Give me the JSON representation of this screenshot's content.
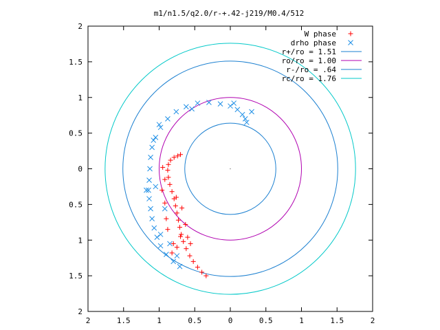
{
  "chart_data": {
    "type": "scatter",
    "title": "m1/n1.5/q2.0/r-+.42-j219/M0.4/512",
    "xlabel": "",
    "ylabel": "",
    "xlim": [
      -2,
      2
    ],
    "ylim": [
      -2,
      2
    ],
    "x_tick_values": [
      -2,
      -1.5,
      -1,
      -0.5,
      0,
      0.5,
      1,
      1.5,
      2
    ],
    "x_tick_labels": [
      "2",
      "1.5",
      "1",
      "0.5",
      "0",
      "0.5",
      "1",
      "1.5",
      "2"
    ],
    "y_tick_values": [
      2,
      1.5,
      1,
      0.5,
      0,
      -0.5,
      -1,
      -1.5,
      -2
    ],
    "y_tick_labels": [
      "2",
      "1.5",
      "1",
      "0.5",
      "0",
      "0.5",
      "1",
      "1.5",
      "2"
    ],
    "grid": false,
    "legend_position": "top-right",
    "series": [
      {
        "name": "W phase",
        "kind": "points",
        "marker": "plus",
        "color": "#ff0000",
        "points": [
          [
            -0.34,
            -1.5
          ],
          [
            -0.4,
            -1.45
          ],
          [
            -0.46,
            -1.38
          ],
          [
            -0.52,
            -1.3
          ],
          [
            -0.57,
            -1.22
          ],
          [
            -0.62,
            -1.12
          ],
          [
            -0.66,
            -1.02
          ],
          [
            -0.69,
            -0.92
          ],
          [
            -0.71,
            -0.82
          ],
          [
            -0.73,
            -0.72
          ],
          [
            -0.75,
            -0.62
          ],
          [
            -0.77,
            -0.52
          ],
          [
            -0.79,
            -0.42
          ],
          [
            -0.82,
            -0.32
          ],
          [
            -0.85,
            -0.22
          ],
          [
            -0.87,
            -0.12
          ],
          [
            -0.88,
            -0.02
          ],
          [
            -0.87,
            0.06
          ],
          [
            -0.84,
            0.12
          ],
          [
            -0.79,
            0.16
          ],
          [
            -0.74,
            0.18
          ],
          [
            -0.7,
            0.2
          ],
          [
            -0.75,
            -1.1
          ],
          [
            -0.8,
            -1.05
          ],
          [
            -0.7,
            -0.95
          ],
          [
            -0.88,
            -0.85
          ],
          [
            -0.92,
            -0.48
          ],
          [
            -0.96,
            -0.3
          ],
          [
            -0.9,
            -0.7
          ],
          [
            -0.6,
            -0.96
          ],
          [
            -0.63,
            -0.78
          ],
          [
            -0.82,
            -1.18
          ],
          [
            -0.56,
            -1.05
          ],
          [
            -0.92,
            -0.15
          ],
          [
            -0.95,
            0.02
          ],
          [
            -0.76,
            -0.4
          ],
          [
            -0.68,
            -0.55
          ]
        ]
      },
      {
        "name": "drho phase",
        "kind": "points",
        "marker": "cross",
        "color": "#1f8fe6",
        "points": [
          [
            -0.71,
            -1.37
          ],
          [
            -0.8,
            -1.3
          ],
          [
            -0.9,
            -1.2
          ],
          [
            -0.98,
            -1.08
          ],
          [
            -1.03,
            -0.96
          ],
          [
            -1.07,
            -0.83
          ],
          [
            -1.1,
            -0.7
          ],
          [
            -1.12,
            -0.56
          ],
          [
            -1.14,
            -0.42
          ],
          [
            -1.15,
            -0.3
          ],
          [
            -1.14,
            -0.16
          ],
          [
            -1.13,
            0.0
          ],
          [
            -1.12,
            0.16
          ],
          [
            -1.1,
            0.3
          ],
          [
            -1.05,
            0.44
          ],
          [
            -0.98,
            0.58
          ],
          [
            -0.88,
            0.7
          ],
          [
            -0.76,
            0.8
          ],
          [
            -0.62,
            0.87
          ],
          [
            -0.46,
            0.92
          ],
          [
            -0.3,
            0.93
          ],
          [
            -0.14,
            0.91
          ],
          [
            0.0,
            0.88
          ],
          [
            0.1,
            0.83
          ],
          [
            0.17,
            0.76
          ],
          [
            0.21,
            0.7
          ],
          [
            0.23,
            0.65
          ],
          [
            -0.92,
            -0.56
          ],
          [
            -0.98,
            -0.92
          ],
          [
            -1.18,
            -0.3
          ],
          [
            -1.05,
            -0.25
          ],
          [
            -1.08,
            0.4
          ],
          [
            -0.54,
            0.84
          ],
          [
            0.3,
            0.8
          ],
          [
            -0.85,
            -1.05
          ],
          [
            -0.75,
            -1.22
          ],
          [
            -1.0,
            0.62
          ],
          [
            0.05,
            0.92
          ]
        ]
      },
      {
        "name": "r+/ro = 1.51",
        "kind": "circle",
        "radius": 1.51,
        "color": "#1a7fd0"
      },
      {
        "name": "ro/ro = 1.00",
        "kind": "circle",
        "radius": 1.0,
        "color": "#b000b0"
      },
      {
        "name": "r-/ro = .64",
        "kind": "circle",
        "radius": 0.64,
        "color": "#1a7fd0"
      },
      {
        "name": "rc/ro = 1.76",
        "kind": "circle",
        "radius": 1.76,
        "color": "#00c8c8"
      }
    ]
  }
}
